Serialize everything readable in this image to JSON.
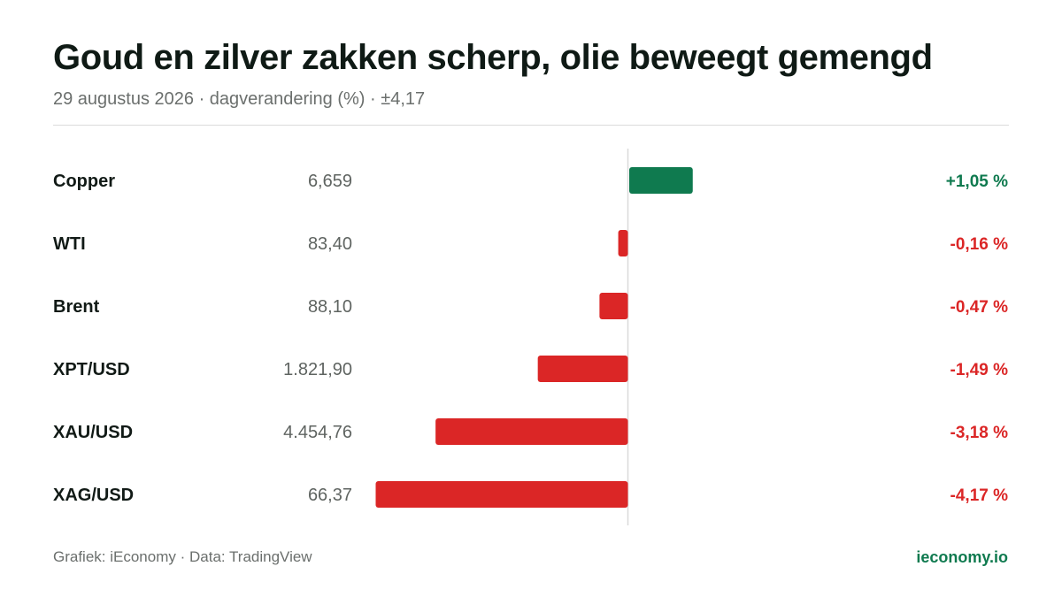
{
  "header": {
    "title": "Goud en zilver zakken scherp, olie beweegt gemengd",
    "subtitle": "29 augustus 2026 · dagverandering (%) · ±4,17"
  },
  "footer": {
    "source": "Grafiek: iEconomy · Data: TradingView",
    "brand": "ieconomy.io"
  },
  "colors": {
    "positive": "#0f7a4f",
    "negative": "#db2626",
    "baseline": "#d9d9d9"
  },
  "chart_data": {
    "type": "bar",
    "orientation": "horizontal",
    "value_unit": "%",
    "xlim": [
      -4.17,
      4.17
    ],
    "grid": false,
    "categories": [
      "Copper",
      "WTI",
      "Brent",
      "XPT/USD",
      "XAU/USD",
      "XAG/USD"
    ],
    "prices": [
      "6,659",
      "83,40",
      "88,10",
      "1.821,90",
      "4.454,76",
      "66,37"
    ],
    "values": [
      1.05,
      -0.16,
      -0.47,
      -1.49,
      -3.18,
      -4.17
    ],
    "value_labels": [
      "+1,05 %",
      "-0,16 %",
      "-0,47 %",
      "-1,49 %",
      "-3,18 %",
      "-4,17 %"
    ]
  }
}
